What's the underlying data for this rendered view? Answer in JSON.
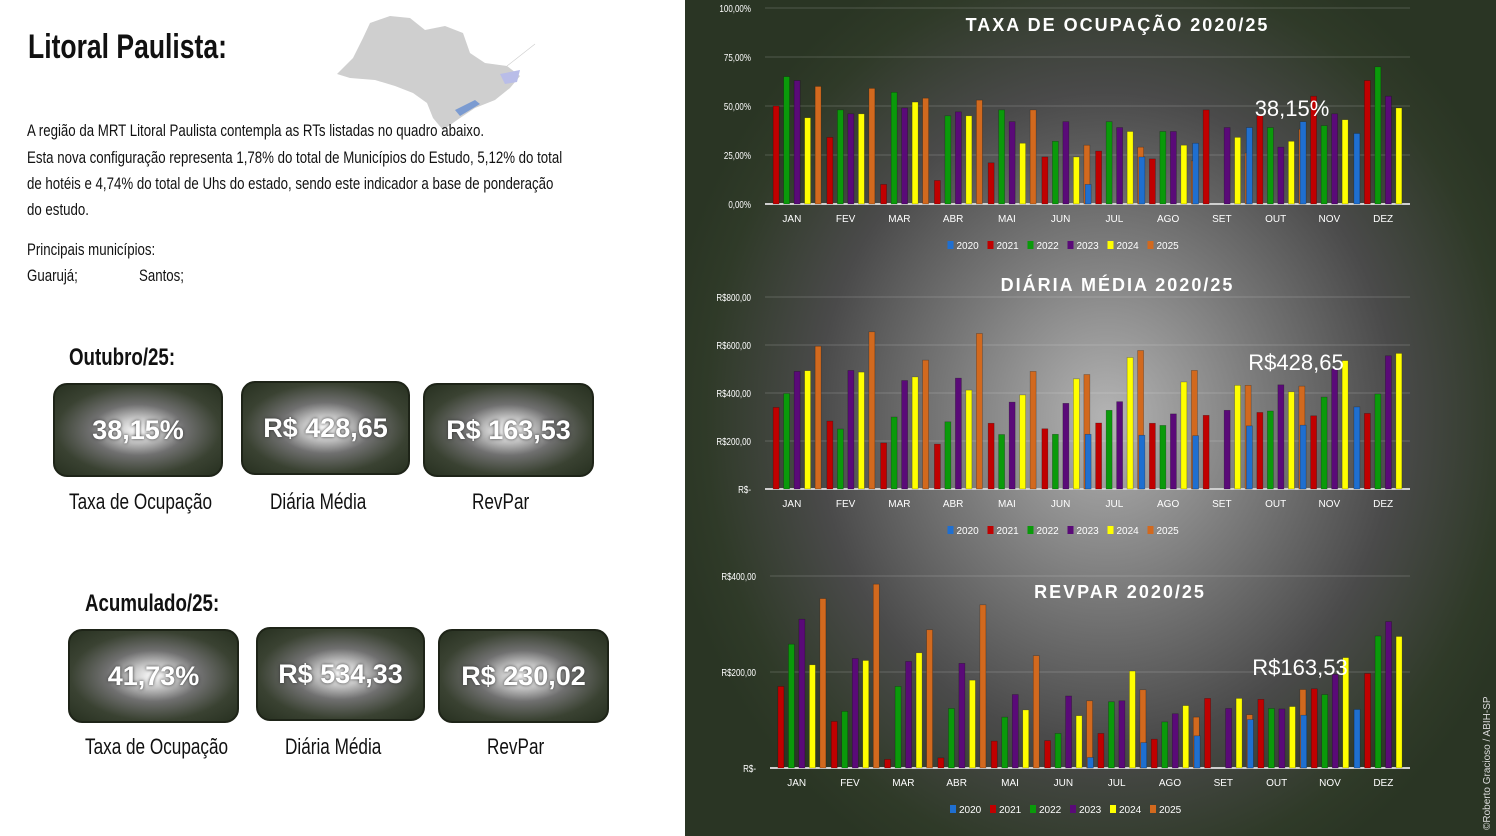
{
  "left": {
    "title": "Litoral Paulista:",
    "paragraph_1": "A região da MRT Litoral Paulista contempla as RTs listadas no quadro abaixo.",
    "paragraph_2_lines": [
      "Esta nova configuração representa 1,78% do total de Municípios do Estudo, 5,12% do total",
      "de hotéis e 4,74% do total de Uhs do estado, sendo este indicador a base de ponderação",
      "do estudo."
    ],
    "municipios_label": "Principais municípios:",
    "municipios": [
      "Guarujá;",
      "Santos;"
    ],
    "month_section": {
      "title": "Outubro/25:",
      "kpis": [
        {
          "value": "38,15%",
          "label": "Taxa de Ocupação"
        },
        {
          "value": "R$ 428,65",
          "label": "Diária Média"
        },
        {
          "value": "R$ 163,53",
          "label": "RevPar"
        }
      ]
    },
    "ytd_section": {
      "title": "Acumulado/25:",
      "kpis": [
        {
          "value": "41,73%",
          "label": "Taxa de Ocupação"
        },
        {
          "value": "R$ 534,33",
          "label": "Diária Média"
        },
        {
          "value": "R$ 230,02",
          "label": "RevPar"
        }
      ]
    },
    "map_icon": "sao-paulo-state-map"
  },
  "credit": "©Roberto Gracioso / ABIH-SP",
  "colors": {
    "2020": "#1f6fd0",
    "2021": "#c00000",
    "2022": "#0a9a0a",
    "2023": "#5a0a78",
    "2024": "#ffff00",
    "2025": "#d2691e",
    "background": "#2a3524"
  },
  "chart_data": [
    {
      "type": "bar",
      "title": "TAXA DE OCUPAÇÃO 2020/25",
      "categories": [
        "JAN",
        "FEV",
        "MAR",
        "ABR",
        "MAI",
        "JUN",
        "JUL",
        "AGO",
        "SET",
        "OUT",
        "NOV",
        "DEZ"
      ],
      "ylim": [
        0,
        100
      ],
      "yticks": [
        "0,00%",
        "25,00%",
        "50,00%",
        "75,00%",
        "100,00%"
      ],
      "ytick_values": [
        0,
        25,
        50,
        75,
        100
      ],
      "grid": true,
      "legend": "bottom",
      "annotation": "38,15%",
      "series": [
        {
          "name": "2020",
          "values": [
            null,
            null,
            null,
            null,
            null,
            null,
            10,
            24,
            31,
            39,
            42,
            36
          ]
        },
        {
          "name": "2021",
          "values": [
            50,
            34,
            10,
            12,
            21,
            24,
            27,
            23,
            48,
            45,
            55,
            63
          ]
        },
        {
          "name": "2022",
          "values": [
            65,
            48,
            57,
            45,
            48,
            32,
            42,
            37,
            null,
            39,
            40,
            70
          ]
        },
        {
          "name": "2023",
          "values": [
            63,
            46,
            49,
            47,
            42,
            42,
            39,
            37,
            39,
            29,
            46,
            55
          ]
        },
        {
          "name": "2024",
          "values": [
            44,
            46,
            52,
            45,
            31,
            24,
            37,
            30,
            34,
            32,
            43,
            49
          ]
        },
        {
          "name": "2025",
          "values": [
            60,
            59,
            54,
            53,
            48,
            30,
            29,
            22,
            26,
            38.15,
            null,
            null
          ]
        }
      ]
    },
    {
      "type": "bar",
      "title": "DIÁRIA MÉDIA 2020/25",
      "categories": [
        "JAN",
        "FEV",
        "MAR",
        "ABR",
        "MAI",
        "JUN",
        "JUL",
        "AGO",
        "SET",
        "OUT",
        "NOV",
        "DEZ"
      ],
      "ylim": [
        0,
        800
      ],
      "yticks": [
        "R$-",
        "R$200,00",
        "R$400,00",
        "R$600,00",
        "R$800,00"
      ],
      "ytick_values": [
        0,
        200,
        400,
        600,
        800
      ],
      "grid": true,
      "legend": "bottom",
      "annotation": "R$428,65",
      "series": [
        {
          "name": "2020",
          "values": [
            null,
            null,
            null,
            null,
            null,
            null,
            228,
            224,
            222,
            263,
            266,
            342
          ]
        },
        {
          "name": "2021",
          "values": [
            340,
            283,
            192,
            187,
            274,
            251,
            275,
            274,
            307,
            319,
            305,
            315
          ]
        },
        {
          "name": "2022",
          "values": [
            398,
            250,
            300,
            280,
            227,
            228,
            328,
            265,
            null,
            325,
            383,
            396
          ]
        },
        {
          "name": "2023",
          "values": [
            490,
            494,
            452,
            462,
            362,
            357,
            364,
            313,
            328,
            434,
            500,
            555
          ]
        },
        {
          "name": "2024",
          "values": [
            493,
            487,
            467,
            412,
            392,
            459,
            548,
            446,
            432,
            405,
            535,
            565
          ]
        },
        {
          "name": "2025",
          "values": [
            595,
            655,
            537,
            648,
            490,
            477,
            577,
            494,
            432,
            428.65,
            null,
            null
          ]
        }
      ]
    },
    {
      "type": "bar",
      "title": "REVPAR 2020/25",
      "categories": [
        "JAN",
        "FEV",
        "MAR",
        "ABR",
        "MAI",
        "JUN",
        "JUL",
        "AGO",
        "SET",
        "OUT",
        "NOV",
        "DEZ"
      ],
      "ylim": [
        0,
        400
      ],
      "yticks": [
        "R$-",
        "R$200,00",
        "R$400,00"
      ],
      "ytick_values": [
        0,
        200,
        400
      ],
      "grid": true,
      "legend": "bottom",
      "annotation": "R$163,53",
      "series": [
        {
          "name": "2020",
          "values": [
            null,
            null,
            null,
            null,
            null,
            null,
            22,
            53,
            67,
            101,
            110,
            122
          ]
        },
        {
          "name": "2021",
          "values": [
            170,
            97,
            18,
            21,
            56,
            57,
            72,
            60,
            145,
            143,
            165,
            197
          ]
        },
        {
          "name": "2022",
          "values": [
            258,
            118,
            170,
            124,
            106,
            72,
            138,
            96,
            null,
            124,
            153,
            275
          ]
        },
        {
          "name": "2023",
          "values": [
            310,
            228,
            222,
            218,
            153,
            150,
            140,
            113,
            124,
            123,
            195,
            305
          ]
        },
        {
          "name": "2024",
          "values": [
            215,
            224,
            240,
            183,
            121,
            109,
            202,
            130,
            145,
            128,
            230,
            274
          ]
        },
        {
          "name": "2025",
          "values": [
            353,
            383,
            288,
            340,
            234,
            140,
            163,
            106,
            111,
            163.53,
            null,
            null
          ]
        }
      ]
    }
  ]
}
